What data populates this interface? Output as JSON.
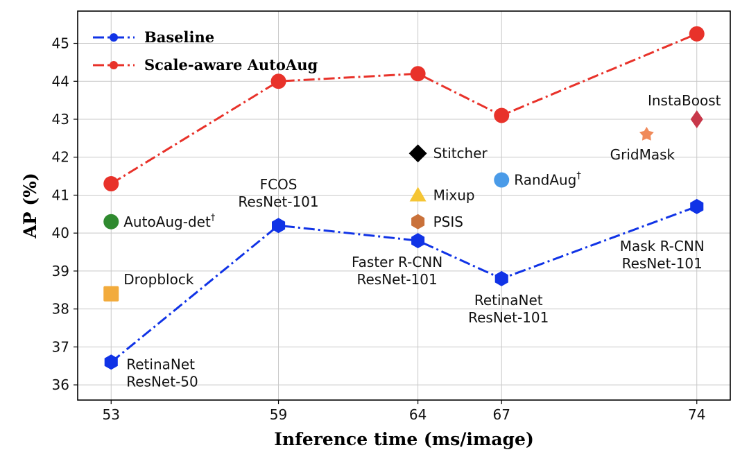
{
  "chart_data": {
    "type": "line",
    "xlabel": "Inference time (ms/image)",
    "ylabel": "AP (%)",
    "x_ticks": [
      53,
      59,
      64,
      67,
      74
    ],
    "y_ticks": [
      36,
      37,
      38,
      39,
      40,
      41,
      42,
      43,
      44,
      45
    ],
    "xlim": [
      51.8,
      75.2
    ],
    "ylim": [
      35.6,
      45.85
    ],
    "grid": true,
    "legend_position": "top-left",
    "series": [
      {
        "name": "Baseline",
        "color": "#1033e6",
        "line_style": "dash-dot",
        "marker": "hexagon",
        "points": [
          {
            "x": 53,
            "y": 36.6,
            "label": [
              "RetinaNet",
              "ResNet-50"
            ]
          },
          {
            "x": 59,
            "y": 40.2,
            "label": [
              "FCOS",
              "ResNet-101"
            ]
          },
          {
            "x": 64,
            "y": 39.8,
            "label": [
              "Faster R-CNN",
              "ResNet-101"
            ]
          },
          {
            "x": 67,
            "y": 38.8,
            "label": [
              "RetinaNet",
              "ResNet-101"
            ]
          },
          {
            "x": 74,
            "y": 40.7,
            "label": [
              "Mask R-CNN",
              "ResNet-101"
            ]
          }
        ]
      },
      {
        "name": "Scale-aware AutoAug",
        "color": "#e8322a",
        "line_style": "dash-dot",
        "marker": "circle",
        "points": [
          {
            "x": 53,
            "y": 41.3
          },
          {
            "x": 59,
            "y": 44.0
          },
          {
            "x": 64,
            "y": 44.2
          },
          {
            "x": 67,
            "y": 43.1
          },
          {
            "x": 74,
            "y": 45.25
          }
        ]
      }
    ],
    "other_methods": [
      {
        "name": "AutoAug-det",
        "sup": "†",
        "x": 53,
        "y": 40.3,
        "marker": "circle",
        "color": "#2f8a2f"
      },
      {
        "name": "Dropblock",
        "sup": "",
        "x": 53,
        "y": 38.4,
        "marker": "square",
        "color": "#f2ab3c"
      },
      {
        "name": "Stitcher",
        "sup": "",
        "x": 64,
        "y": 42.1,
        "marker": "diamond",
        "color": "#000000"
      },
      {
        "name": "Mixup",
        "sup": "",
        "x": 64,
        "y": 41.0,
        "marker": "triangle",
        "color": "#f5c534"
      },
      {
        "name": "PSIS",
        "sup": "",
        "x": 64,
        "y": 40.3,
        "marker": "hexagon",
        "color": "#c9713a"
      },
      {
        "name": "RandAug",
        "sup": "†",
        "x": 67,
        "y": 41.4,
        "marker": "circle",
        "color": "#4a9be8"
      },
      {
        "name": "GridMask",
        "sup": "",
        "x": 72.2,
        "y": 42.6,
        "marker": "star",
        "color": "#f08a5a"
      },
      {
        "name": "InstaBoost",
        "sup": "",
        "x": 74,
        "y": 43.0,
        "marker": "thin-diamond",
        "color": "#c8384a"
      }
    ]
  }
}
